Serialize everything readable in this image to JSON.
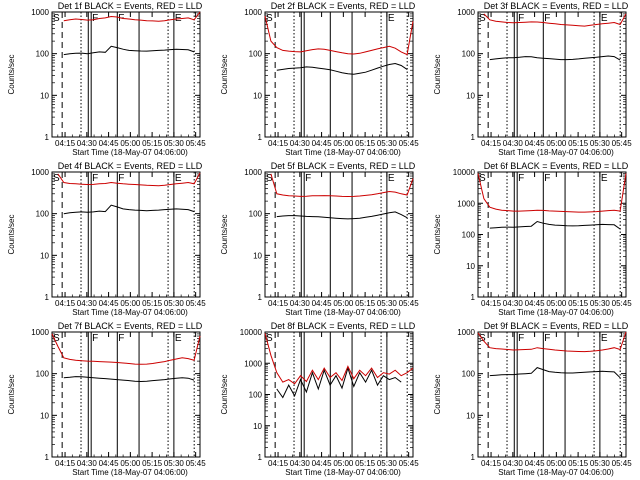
{
  "chart_data": [
    {
      "type": "line",
      "title": "Det 1f BLACK = Events, RED = LLD",
      "xlabel": "Start Time (18-May-07 04:06:00)",
      "ylabel": "Counts/sec",
      "y_scale": "log",
      "ylim": [
        1,
        1000
      ],
      "x_ticks": [
        "04:15",
        "04:30",
        "04:45",
        "05:00",
        "05:15",
        "05:30",
        "05:45"
      ],
      "y_ticks": [
        "1",
        "10",
        "100",
        "1000"
      ],
      "markers": [
        {
          "label": "S",
          "x": "04:06"
        },
        {
          "label": "F",
          "x": "04:33"
        },
        {
          "label": "F",
          "x": "04:51"
        },
        {
          "label": "E",
          "x": "05:30"
        }
      ],
      "series": [
        {
          "name": "Events",
          "color": "#000000",
          "values": [
            null,
            null,
            95,
            100,
            102,
            103,
            100,
            105,
            110,
            108,
            150,
            140,
            128,
            120,
            118,
            116,
            115,
            117,
            120,
            122,
            125,
            128,
            126,
            124,
            110,
            null
          ]
        },
        {
          "name": "LLD",
          "color": "#cc0000",
          "values": [
            null,
            null,
            620,
            650,
            680,
            660,
            640,
            650,
            700,
            720,
            780,
            760,
            700,
            680,
            650,
            640,
            620,
            610,
            600,
            620,
            650,
            680,
            700,
            720,
            650,
            1000
          ]
        }
      ]
    },
    {
      "type": "line",
      "title": "Det 2f BLACK = Events, RED = LLD",
      "xlabel": "Start Time (18-May-07 04:06:00)",
      "ylabel": "Counts/sec",
      "y_scale": "log",
      "ylim": [
        1,
        1000
      ],
      "x_ticks": [
        "04:15",
        "04:30",
        "04:45",
        "05:00",
        "05:15",
        "05:30",
        "05:45"
      ],
      "y_ticks": [
        "1",
        "10",
        "100",
        "1000"
      ],
      "markers": [
        {
          "label": "S",
          "x": "04:06"
        },
        {
          "label": "E",
          "x": "05:30"
        }
      ],
      "series": [
        {
          "name": "Events",
          "color": "#000000",
          "values": [
            null,
            null,
            40,
            42,
            44,
            45,
            46,
            48,
            47,
            45,
            43,
            41,
            38,
            35,
            33,
            32,
            34,
            36,
            40,
            45,
            50,
            55,
            58,
            52,
            42,
            null
          ]
        },
        {
          "name": "LLD",
          "color": "#cc0000",
          "values": [
            800,
            200,
            140,
            120,
            115,
            112,
            110,
            118,
            125,
            130,
            128,
            120,
            112,
            105,
            100,
            98,
            102,
            110,
            120,
            130,
            140,
            150,
            135,
            110,
            95,
            600
          ]
        }
      ]
    },
    {
      "type": "line",
      "title": "Det 3f BLACK = Events, RED = LLD",
      "xlabel": "Start Time (18-May-07 04:06:00)",
      "ylabel": "Counts/sec",
      "y_scale": "log",
      "ylim": [
        1,
        1000
      ],
      "x_ticks": [
        "04:15",
        "04:30",
        "04:45",
        "05:00",
        "05:15",
        "05:30",
        "05:45"
      ],
      "y_ticks": [
        "1",
        "10",
        "100",
        "1000"
      ],
      "markers": [
        {
          "label": "S",
          "x": "04:06"
        },
        {
          "label": "F",
          "x": "04:33"
        },
        {
          "label": "F",
          "x": "04:51"
        },
        {
          "label": "E",
          "x": "05:30"
        }
      ],
      "series": [
        {
          "name": "Events",
          "color": "#000000",
          "values": [
            null,
            null,
            72,
            75,
            78,
            80,
            80,
            82,
            85,
            84,
            80,
            78,
            76,
            74,
            72,
            72,
            73,
            75,
            78,
            80,
            82,
            85,
            88,
            85,
            70,
            null
          ]
        },
        {
          "name": "LLD",
          "color": "#cc0000",
          "values": [
            null,
            900,
            650,
            600,
            580,
            560,
            550,
            560,
            570,
            580,
            575,
            560,
            540,
            520,
            500,
            490,
            480,
            470,
            460,
            480,
            500,
            520,
            540,
            560,
            500,
            900
          ]
        }
      ]
    },
    {
      "type": "line",
      "title": "Det 4f BLACK = Events, RED = LLD",
      "xlabel": "Start Time (18-May-07 04:06:00)",
      "ylabel": "Counts/sec",
      "y_scale": "log",
      "ylim": [
        1,
        1000
      ],
      "x_ticks": [
        "04:15",
        "04:30",
        "04:45",
        "05:00",
        "05:15",
        "05:30",
        "05:45"
      ],
      "y_ticks": [
        "1",
        "10",
        "100",
        "1000"
      ],
      "markers": [
        {
          "label": "S",
          "x": "04:06"
        },
        {
          "label": "F",
          "x": "04:33"
        },
        {
          "label": "F",
          "x": "04:51"
        },
        {
          "label": "E",
          "x": "05:30"
        }
      ],
      "series": [
        {
          "name": "Events",
          "color": "#000000",
          "values": [
            null,
            null,
            100,
            105,
            108,
            110,
            108,
            110,
            115,
            112,
            160,
            145,
            130,
            125,
            122,
            120,
            118,
            120,
            122,
            125,
            128,
            130,
            128,
            125,
            112,
            null
          ]
        },
        {
          "name": "LLD",
          "color": "#cc0000",
          "values": [
            null,
            900,
            560,
            530,
            520,
            510,
            500,
            505,
            520,
            530,
            560,
            540,
            520,
            510,
            500,
            490,
            480,
            475,
            470,
            480,
            500,
            520,
            540,
            560,
            520,
            950
          ]
        }
      ]
    },
    {
      "type": "line",
      "title": "Det 5f BLACK = Events, RED = LLD",
      "xlabel": "Start Time (18-May-07 04:06:00)",
      "ylabel": "Counts/sec",
      "y_scale": "log",
      "ylim": [
        1,
        1000
      ],
      "x_ticks": [
        "04:15",
        "04:30",
        "04:45",
        "05:00",
        "05:15",
        "05:30",
        "05:45"
      ],
      "y_ticks": [
        "1",
        "10",
        "100",
        "1000"
      ],
      "markers": [
        {
          "label": "S",
          "x": "04:06"
        },
        {
          "label": "F",
          "x": "04:33"
        },
        {
          "label": "E",
          "x": "05:30"
        }
      ],
      "series": [
        {
          "name": "Events",
          "color": "#000000",
          "values": [
            null,
            null,
            85,
            88,
            90,
            90,
            88,
            86,
            85,
            84,
            82,
            80,
            78,
            76,
            75,
            76,
            78,
            82,
            86,
            92,
            98,
            105,
            110,
            95,
            80,
            null
          ]
        },
        {
          "name": "LLD",
          "color": "#cc0000",
          "values": [
            null,
            900,
            300,
            280,
            270,
            265,
            260,
            262,
            268,
            270,
            272,
            270,
            265,
            260,
            258,
            260,
            265,
            275,
            285,
            300,
            320,
            340,
            330,
            300,
            280,
            700
          ]
        }
      ]
    },
    {
      "type": "line",
      "title": "Det 6f BLACK = Events, RED = LLD",
      "xlabel": "Start Time (18-May-07 04:06:00)",
      "ylabel": "Counts/sec",
      "y_scale": "log",
      "ylim": [
        1,
        10000
      ],
      "x_ticks": [
        "04:15",
        "04:30",
        "04:45",
        "05:00",
        "05:15",
        "05:30",
        "05:45"
      ],
      "y_ticks": [
        "1",
        "10",
        "100",
        "1000",
        "10000"
      ],
      "markers": [
        {
          "label": "S",
          "x": "04:06"
        },
        {
          "label": "F",
          "x": "04:33"
        },
        {
          "label": "F",
          "x": "04:51"
        },
        {
          "label": "E",
          "x": "05:30"
        }
      ],
      "series": [
        {
          "name": "Events",
          "color": "#000000",
          "values": [
            null,
            null,
            160,
            165,
            170,
            172,
            170,
            175,
            180,
            185,
            260,
            230,
            210,
            200,
            195,
            190,
            188,
            190,
            195,
            200,
            205,
            210,
            208,
            205,
            150,
            null
          ]
        },
        {
          "name": "LLD",
          "color": "#cc0000",
          "values": [
            9000,
            1400,
            750,
            650,
            600,
            580,
            560,
            560,
            570,
            580,
            600,
            590,
            570,
            560,
            550,
            540,
            530,
            520,
            520,
            530,
            540,
            560,
            580,
            600,
            560,
            9000
          ]
        }
      ]
    },
    {
      "type": "line",
      "title": "Det 7f BLACK = Events, RED = LLD",
      "xlabel": "Start Time (18-May-07 04:06:00)",
      "ylabel": "Counts/sec",
      "y_scale": "log",
      "ylim": [
        1,
        1000
      ],
      "x_ticks": [
        "04:15",
        "04:30",
        "04:45",
        "05:00",
        "05:15",
        "05:30",
        "05:45"
      ],
      "y_ticks": [
        "1",
        "10",
        "100",
        "1000"
      ],
      "markers": [
        {
          "label": "S",
          "x": "04:06"
        },
        {
          "label": "F",
          "x": "04:33"
        },
        {
          "label": "F",
          "x": "04:51"
        },
        {
          "label": "E",
          "x": "05:30"
        }
      ],
      "series": [
        {
          "name": "Events",
          "color": "#000000",
          "values": [
            null,
            null,
            80,
            82,
            85,
            84,
            82,
            80,
            78,
            76,
            74,
            72,
            70,
            68,
            66,
            65,
            66,
            68,
            70,
            72,
            75,
            78,
            80,
            78,
            70,
            null
          ]
        },
        {
          "name": "LLD",
          "color": "#cc0000",
          "values": [
            900,
            450,
            240,
            220,
            210,
            205,
            200,
            198,
            195,
            192,
            190,
            185,
            180,
            175,
            170,
            168,
            170,
            175,
            185,
            195,
            210,
            225,
            240,
            230,
            210,
            800
          ]
        }
      ]
    },
    {
      "type": "line",
      "title": "Det 8f BLACK = Events, RED = LLD",
      "xlabel": "Start Time (18-May-07 04:06:00)",
      "ylabel": "Counts/sec",
      "y_scale": "log",
      "ylim": [
        1,
        10000
      ],
      "x_ticks": [
        "04:15",
        "04:30",
        "04:45",
        "05:00",
        "05:15",
        "05:30",
        "05:45"
      ],
      "y_ticks": [
        "1",
        "10",
        "100",
        "1000",
        "10000"
      ],
      "markers": [
        {
          "label": "S",
          "x": "04:06"
        }
      ],
      "series": [
        {
          "name": "Events",
          "color": "#000000",
          "values": [
            null,
            null,
            150,
            80,
            200,
            90,
            300,
            120,
            500,
            150,
            600,
            200,
            400,
            160,
            700,
            180,
            500,
            250,
            600,
            200,
            400,
            300,
            350,
            250,
            null,
            null
          ]
        },
        {
          "name": "LLD",
          "color": "#cc0000",
          "values": [
            9000,
            1800,
            500,
            250,
            300,
            220,
            400,
            260,
            600,
            300,
            700,
            350,
            500,
            280,
            800,
            320,
            600,
            400,
            700,
            350,
            500,
            450,
            600,
            400,
            500,
            700
          ]
        }
      ]
    },
    {
      "type": "line",
      "title": "Det 9f BLACK = Events, RED = LLD",
      "xlabel": "Start Time (18-May-07 04:06:00)",
      "ylabel": "Counts/sec",
      "y_scale": "log",
      "ylim": [
        1,
        1000
      ],
      "x_ticks": [
        "04:15",
        "04:30",
        "04:45",
        "05:00",
        "05:15",
        "05:30",
        "05:45"
      ],
      "y_ticks": [
        "1",
        "10",
        "100",
        "1000"
      ],
      "markers": [
        {
          "label": "S",
          "x": "04:06"
        },
        {
          "label": "F",
          "x": "04:33"
        },
        {
          "label": "F",
          "x": "04:51"
        },
        {
          "label": "E",
          "x": "05:30"
        }
      ],
      "series": [
        {
          "name": "Events",
          "color": "#000000",
          "values": [
            null,
            null,
            90,
            92,
            94,
            95,
            95,
            98,
            100,
            102,
            140,
            125,
            112,
            108,
            105,
            104,
            104,
            106,
            108,
            110,
            112,
            114,
            112,
            110,
            80,
            null
          ]
        },
        {
          "name": "LLD",
          "color": "#cc0000",
          "values": [
            950,
            600,
            420,
            400,
            390,
            380,
            370,
            375,
            380,
            385,
            420,
            400,
            385,
            370,
            360,
            350,
            345,
            340,
            338,
            345,
            355,
            370,
            390,
            420,
            380,
            1000
          ]
        }
      ]
    }
  ]
}
